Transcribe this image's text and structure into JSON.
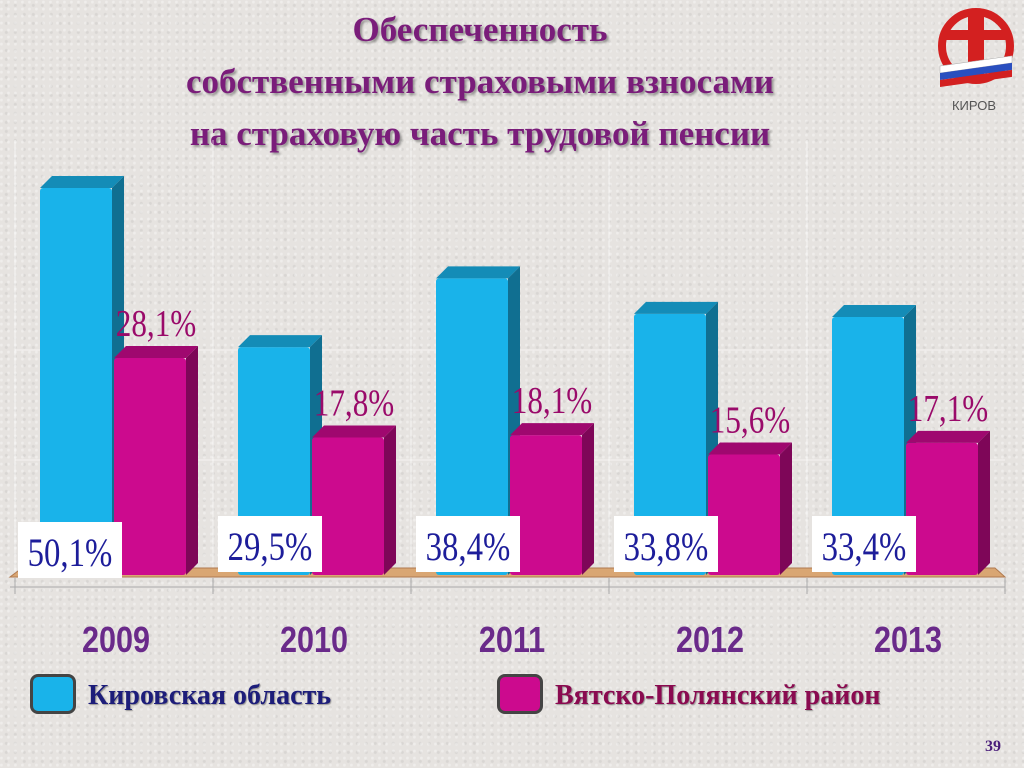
{
  "title_lines": [
    "Обеспеченность",
    "собственными страховыми взносами",
    "на страховую часть трудовой пенсии"
  ],
  "logo": {
    "text": "КИРОВ"
  },
  "page_number": "39",
  "colors": {
    "series1": "#19b3ea",
    "series2": "#cc0a8e",
    "title": "#7a1d7a",
    "year_labels": "#6a2a8a",
    "series1_labels": "#1d1d9a",
    "series2_labels": "#9a0a6a"
  },
  "legend": [
    {
      "label": "Кировская  область"
    },
    {
      "label": "Вятско-Полянский район"
    }
  ],
  "chart_data": {
    "type": "bar",
    "categories": [
      "2009",
      "2010",
      "2011",
      "2012",
      "2013"
    ],
    "series": [
      {
        "name": "Кировская  область",
        "values": [
          50.1,
          29.5,
          38.4,
          33.8,
          33.4
        ],
        "labels": [
          "50,1%",
          "29,5%",
          "38,4%",
          "33,8%",
          "33,4%"
        ]
      },
      {
        "name": "Вятско-Полянский район",
        "values": [
          28.1,
          17.8,
          18.1,
          15.6,
          17.1
        ],
        "labels": [
          "28,1%",
          "17,8%",
          "18,1%",
          "15,6%",
          "17,1%"
        ]
      }
    ],
    "grid": true,
    "legend_position": "bottom"
  }
}
